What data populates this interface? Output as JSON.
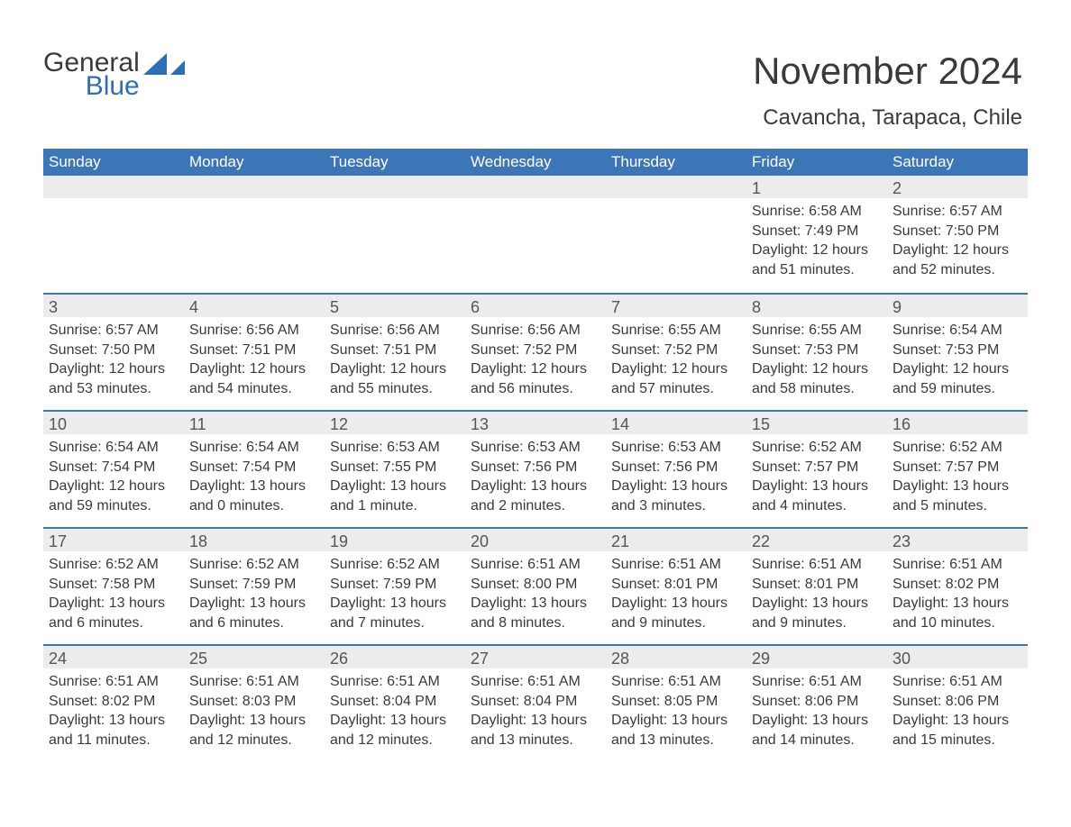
{
  "logo": {
    "word1": "General",
    "word2": "Blue"
  },
  "title": "November 2024",
  "location": "Cavancha, Tarapaca, Chile",
  "colors": {
    "header_bg": "#3d76b7",
    "band_bg": "#ececec",
    "rule": "#3d76b7",
    "text": "#3a3a3a",
    "logo_blue": "#2f6fb5"
  },
  "day_labels": [
    "Sunday",
    "Monday",
    "Tuesday",
    "Wednesday",
    "Thursday",
    "Friday",
    "Saturday"
  ],
  "weeks": [
    [
      {
        "blank": true
      },
      {
        "blank": true
      },
      {
        "blank": true
      },
      {
        "blank": true
      },
      {
        "blank": true
      },
      {
        "n": "1",
        "sunrise": "6:58 AM",
        "sunset": "7:49 PM",
        "daylight": "12 hours and 51 minutes."
      },
      {
        "n": "2",
        "sunrise": "6:57 AM",
        "sunset": "7:50 PM",
        "daylight": "12 hours and 52 minutes."
      }
    ],
    [
      {
        "n": "3",
        "sunrise": "6:57 AM",
        "sunset": "7:50 PM",
        "daylight": "12 hours and 53 minutes."
      },
      {
        "n": "4",
        "sunrise": "6:56 AM",
        "sunset": "7:51 PM",
        "daylight": "12 hours and 54 minutes."
      },
      {
        "n": "5",
        "sunrise": "6:56 AM",
        "sunset": "7:51 PM",
        "daylight": "12 hours and 55 minutes."
      },
      {
        "n": "6",
        "sunrise": "6:56 AM",
        "sunset": "7:52 PM",
        "daylight": "12 hours and 56 minutes."
      },
      {
        "n": "7",
        "sunrise": "6:55 AM",
        "sunset": "7:52 PM",
        "daylight": "12 hours and 57 minutes."
      },
      {
        "n": "8",
        "sunrise": "6:55 AM",
        "sunset": "7:53 PM",
        "daylight": "12 hours and 58 minutes."
      },
      {
        "n": "9",
        "sunrise": "6:54 AM",
        "sunset": "7:53 PM",
        "daylight": "12 hours and 59 minutes."
      }
    ],
    [
      {
        "n": "10",
        "sunrise": "6:54 AM",
        "sunset": "7:54 PM",
        "daylight": "12 hours and 59 minutes."
      },
      {
        "n": "11",
        "sunrise": "6:54 AM",
        "sunset": "7:54 PM",
        "daylight": "13 hours and 0 minutes."
      },
      {
        "n": "12",
        "sunrise": "6:53 AM",
        "sunset": "7:55 PM",
        "daylight": "13 hours and 1 minute."
      },
      {
        "n": "13",
        "sunrise": "6:53 AM",
        "sunset": "7:56 PM",
        "daylight": "13 hours and 2 minutes."
      },
      {
        "n": "14",
        "sunrise": "6:53 AM",
        "sunset": "7:56 PM",
        "daylight": "13 hours and 3 minutes."
      },
      {
        "n": "15",
        "sunrise": "6:52 AM",
        "sunset": "7:57 PM",
        "daylight": "13 hours and 4 minutes."
      },
      {
        "n": "16",
        "sunrise": "6:52 AM",
        "sunset": "7:57 PM",
        "daylight": "13 hours and 5 minutes."
      }
    ],
    [
      {
        "n": "17",
        "sunrise": "6:52 AM",
        "sunset": "7:58 PM",
        "daylight": "13 hours and 6 minutes."
      },
      {
        "n": "18",
        "sunrise": "6:52 AM",
        "sunset": "7:59 PM",
        "daylight": "13 hours and 6 minutes."
      },
      {
        "n": "19",
        "sunrise": "6:52 AM",
        "sunset": "7:59 PM",
        "daylight": "13 hours and 7 minutes."
      },
      {
        "n": "20",
        "sunrise": "6:51 AM",
        "sunset": "8:00 PM",
        "daylight": "13 hours and 8 minutes."
      },
      {
        "n": "21",
        "sunrise": "6:51 AM",
        "sunset": "8:01 PM",
        "daylight": "13 hours and 9 minutes."
      },
      {
        "n": "22",
        "sunrise": "6:51 AM",
        "sunset": "8:01 PM",
        "daylight": "13 hours and 9 minutes."
      },
      {
        "n": "23",
        "sunrise": "6:51 AM",
        "sunset": "8:02 PM",
        "daylight": "13 hours and 10 minutes."
      }
    ],
    [
      {
        "n": "24",
        "sunrise": "6:51 AM",
        "sunset": "8:02 PM",
        "daylight": "13 hours and 11 minutes."
      },
      {
        "n": "25",
        "sunrise": "6:51 AM",
        "sunset": "8:03 PM",
        "daylight": "13 hours and 12 minutes."
      },
      {
        "n": "26",
        "sunrise": "6:51 AM",
        "sunset": "8:04 PM",
        "daylight": "13 hours and 12 minutes."
      },
      {
        "n": "27",
        "sunrise": "6:51 AM",
        "sunset": "8:04 PM",
        "daylight": "13 hours and 13 minutes."
      },
      {
        "n": "28",
        "sunrise": "6:51 AM",
        "sunset": "8:05 PM",
        "daylight": "13 hours and 13 minutes."
      },
      {
        "n": "29",
        "sunrise": "6:51 AM",
        "sunset": "8:06 PM",
        "daylight": "13 hours and 14 minutes."
      },
      {
        "n": "30",
        "sunrise": "6:51 AM",
        "sunset": "8:06 PM",
        "daylight": "13 hours and 15 minutes."
      }
    ]
  ],
  "labels": {
    "sunrise_prefix": "Sunrise: ",
    "sunset_prefix": "Sunset: ",
    "daylight_prefix": "Daylight: "
  }
}
